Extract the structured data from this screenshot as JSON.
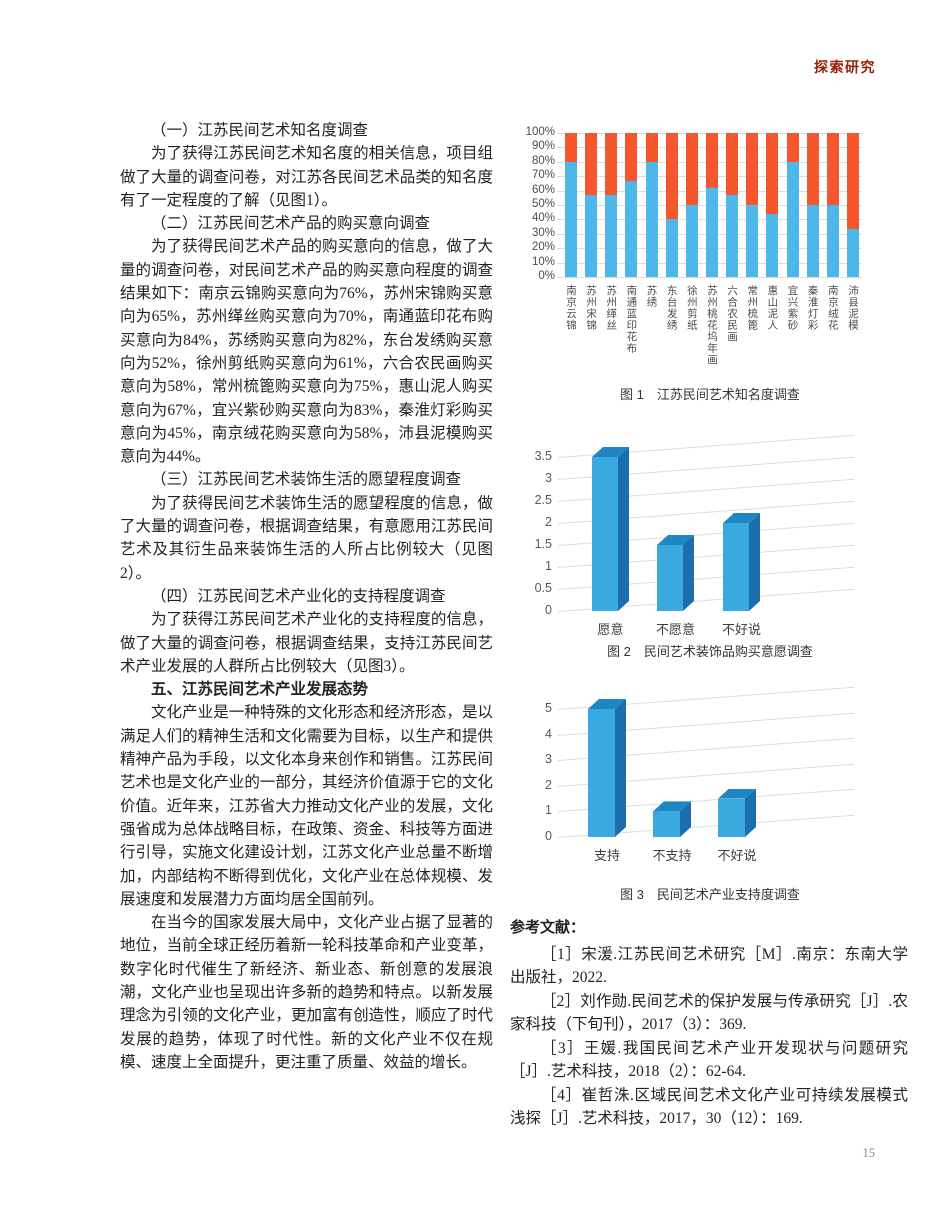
{
  "header": {
    "section_label": "探索研究"
  },
  "page_number": "15",
  "article": {
    "paragraphs": [
      {
        "text": "（一）江苏民间艺术知名度调查",
        "bold": false
      },
      {
        "text": "为了获得江苏民间艺术知名度的相关信息，项目组做了大量的调查问卷，对江苏各民间艺术品类的知名度有了一定程度的了解（见图1）。",
        "bold": false
      },
      {
        "text": "（二）江苏民间艺术产品的购买意向调查",
        "bold": false
      },
      {
        "text": "为了获得民间艺术产品的购买意向的信息，做了大量的调查问卷，对民间艺术产品的购买意向程度的调查结果如下：南京云锦购买意向为76%，苏州宋锦购买意向为65%，苏州缂丝购买意向为70%，南通蓝印花布购买意向为84%，苏绣购买意向为82%，东台发绣购买意向为52%，徐州剪纸购买意向为61%，六合农民画购买意向为58%，常州梳篦购买意向为75%，惠山泥人购买意向为67%，宜兴紫砂购买意向为83%，秦淮灯彩购买意向为45%，南京绒花购买意向为58%，沛县泥模购买意向为44%。",
        "bold": false
      },
      {
        "text": "（三）江苏民间艺术装饰生活的愿望程度调查",
        "bold": false
      },
      {
        "text": "为了获得民间艺术装饰生活的愿望程度的信息，做了大量的调查问卷，根据调查结果，有意愿用江苏民间艺术及其衍生品来装饰生活的人所占比例较大（见图2）。",
        "bold": false
      },
      {
        "text": "（四）江苏民间艺术产业化的支持程度调查",
        "bold": false
      },
      {
        "text": "为了获得江苏民间艺术产业化的支持程度的信息，做了大量的调查问卷，根据调查结果，支持江苏民间艺术产业发展的人群所占比例较大（见图3）。",
        "bold": false
      },
      {
        "text": "五、江苏民间艺术产业发展态势",
        "bold": true
      },
      {
        "text": "文化产业是一种特殊的文化形态和经济形态，是以满足人们的精神生活和文化需要为目标，以生产和提供精神产品为手段，以文化本身来创作和销售。江苏民间艺术也是文化产业的一部分，其经济价值源于它的文化价值。近年来，江苏省大力推动文化产业的发展，文化强省成为总体战略目标，在政策、资金、科技等方面进行引导，实施文化建设计划，江苏文化产业总量不断增加，内部结构不断得到优化，文化产业在总体规模、发展速度和发展潜力方面均居全国前列。",
        "bold": false
      },
      {
        "text": "在当今的国家发展大局中，文化产业占据了显著的地位，当前全球正经历着新一轮科技革命和产业变革，数字化时代催生了新经济、新业态、新创意的发展浪潮，文化产业也呈现出许多新的趋势和特点。以新发展理念为引领的文化产业，更加富有创造性，顺应了时代发展的趋势，体现了时代性。新的文化产业不仅在规模、速度上全面提升，更注重了质量、效益的增长。",
        "bold": false
      }
    ]
  },
  "chart_data": [
    {
      "type": "bar",
      "subtype": "stacked-100-percent",
      "caption_label": "图 1",
      "caption_title": "江苏民间艺术知名度调查",
      "categories": [
        "南京云锦",
        "苏州宋锦",
        "苏州缂丝",
        "南通蓝印花布",
        "苏绣",
        "东台发绣",
        "徐州剪纸",
        "苏州桃花坞年画",
        "六合农民画",
        "常州梳篦",
        "惠山泥人",
        "宜兴紫砂",
        "秦淮灯彩",
        "南京绒花",
        "沛县泥模"
      ],
      "series": [
        {
          "name": "blue-lower-segment",
          "color": "#4CB7E8",
          "values": [
            80,
            57,
            57,
            67,
            80,
            40,
            50,
            62,
            57,
            50,
            44,
            80,
            50,
            50,
            33
          ]
        },
        {
          "name": "orange-upper-segment",
          "color": "#F4572E",
          "values": [
            20,
            43,
            43,
            33,
            20,
            60,
            50,
            38,
            43,
            50,
            56,
            20,
            50,
            50,
            67
          ]
        }
      ],
      "yticks": [
        "100%",
        "90%",
        "80%",
        "70%",
        "60%",
        "50%",
        "40%",
        "30%",
        "20%",
        "10%",
        "0%"
      ],
      "ylim": [
        0,
        100
      ],
      "grid": true,
      "legend": "none"
    },
    {
      "type": "bar",
      "subtype": "3d-column",
      "caption_label": "图 2",
      "caption_title": "民间艺术装饰品购买意愿调查",
      "categories": [
        "愿意",
        "不愿意",
        "不好说"
      ],
      "values": [
        3.5,
        1.5,
        2
      ],
      "yticks": [
        "3.5",
        "3",
        "2.5",
        "2",
        "1.5",
        "1",
        "0.5",
        "0"
      ],
      "ylim": [
        0,
        3.5
      ],
      "grid": true,
      "legend": "none",
      "color_front": "#39A9DF",
      "color_top": "#1F86C4",
      "color_side": "#1C6FAC"
    },
    {
      "type": "bar",
      "subtype": "3d-column",
      "caption_label": "图 3",
      "caption_title": "民间艺术产业支持度调查",
      "categories": [
        "支持",
        "不支持",
        "不好说"
      ],
      "values": [
        5,
        1,
        1.5
      ],
      "yticks": [
        "5",
        "4",
        "3",
        "2",
        "1",
        "0"
      ],
      "ylim": [
        0,
        5
      ],
      "grid": true,
      "legend": "none",
      "color_front": "#39A9DF",
      "color_top": "#1F86C4",
      "color_side": "#1C6FAC"
    }
  ],
  "references": {
    "heading": "参考文献：",
    "items": [
      "［1］宋湲.江苏民间艺术研究［M］.南京：东南大学出版社，2022.",
      "［2］刘作勋.民间艺术的保护发展与传承研究［J］.农家科技（下旬刊），2017（3）：369.",
      "［3］王媛.我国民间艺术产业开发现状与问题研究［J］.艺术科技，2018（2）：62-64.",
      "［4］崔哲洙.区域民间艺术文化产业可持续发展模式浅探［J］.艺术科技，2017，30（12）：169."
    ]
  }
}
